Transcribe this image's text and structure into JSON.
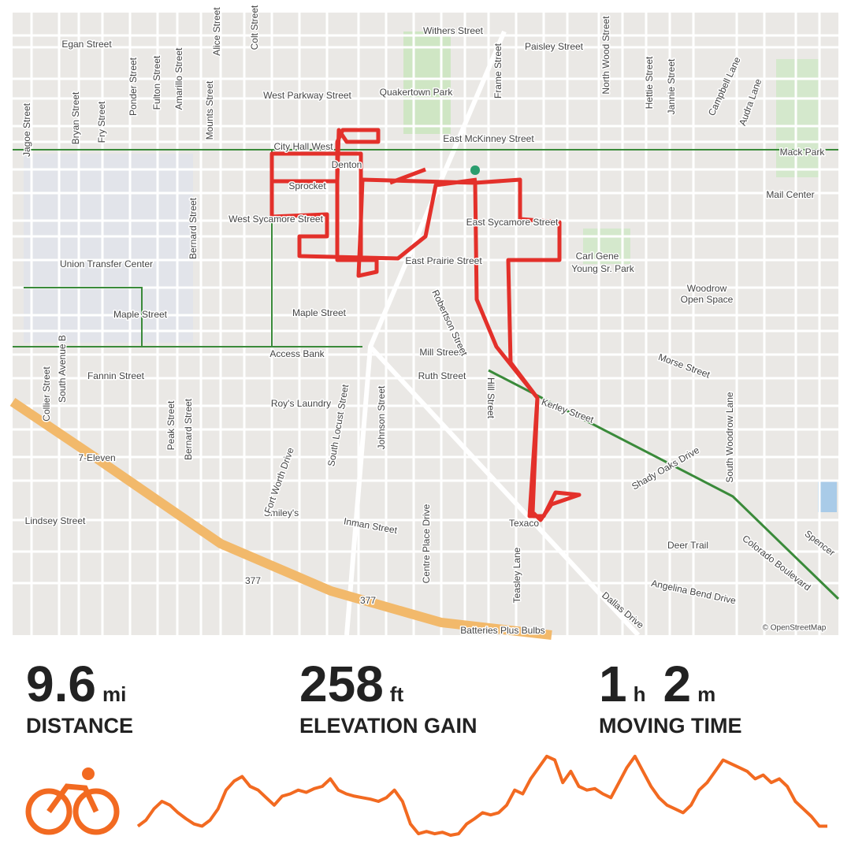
{
  "map": {
    "labels": [
      "Egan Street",
      "Withers Street",
      "Paisley Street",
      "West Parkway Street",
      "Quakertown Park",
      "East McKinney Street",
      "City Hall West",
      "Denton",
      "Sprocket",
      "West Sycamore Street",
      "East Sycamore Street",
      "East Prairie Street",
      "Union Transfer Center",
      "Carl Gene",
      "Young Sr. Park",
      "Woodrow",
      "Open Space",
      "Mack Park",
      "Mail Center",
      "Maple Street",
      "Maple Street",
      "Access Bank",
      "Mill Street",
      "Ruth Street",
      "Fannin Street",
      "Morse Street",
      "Roy's Laundry",
      "Kerley Street",
      "Shady Oaks Drive",
      "7-Eleven",
      "Lindsey Street",
      "Smiley's",
      "Inman Street",
      "Texaco",
      "Deer Trail",
      "Colorado Boulevard",
      "Angelina Bend Drive",
      "Dallas Drive",
      "Batteries Plus Bulbs",
      "© OpenStreetMap",
      "377",
      "377",
      "Bryan Street",
      "Fry Street",
      "Ponder Street",
      "Fulton Street",
      "Amarillo Street",
      "Mounts Street",
      "Alice Street",
      "Bernard Street",
      "Bernard Street",
      "Peak Street",
      "Fort Worth Drive",
      "South Locust Street",
      "Johnson Street",
      "Robertson Street",
      "Hill Street",
      "Frame Street",
      "North Wood Street",
      "Hettie Street",
      "Jannie Street",
      "Campbell Lane",
      "Audra Lane",
      "South Woodrow Lane",
      "Teasley Lane",
      "Centre Place Drive",
      "Collier Street",
      "South Avenue B",
      "Jagoe Street",
      "Colt Street",
      "Spencer"
    ]
  },
  "stats": [
    {
      "parts": [
        {
          "value": 9.6,
          "unit": "mi"
        }
      ],
      "label": "DISTANCE"
    },
    {
      "parts": [
        {
          "value": 258,
          "unit": "ft"
        }
      ],
      "label": "ELEVATION GAIN"
    },
    {
      "parts": [
        {
          "value": 1,
          "unit": "h"
        },
        {
          "value": 2,
          "unit": "m"
        }
      ],
      "label": "MOVING TIME"
    }
  ],
  "chart_data": {
    "type": "line",
    "color": "#f26a21",
    "ylim": [
      0,
      110
    ],
    "values": [
      12,
      20,
      35,
      45,
      40,
      30,
      22,
      15,
      12,
      20,
      35,
      60,
      72,
      78,
      65,
      60,
      50,
      40,
      52,
      55,
      60,
      57,
      62,
      65,
      75,
      60,
      55,
      52,
      50,
      48,
      45,
      50,
      60,
      45,
      15,
      2,
      5,
      2,
      4,
      0,
      2,
      15,
      22,
      30,
      27,
      30,
      40,
      60,
      55,
      75,
      90,
      105,
      100,
      70,
      85,
      65,
      60,
      62,
      55,
      50,
      70,
      90,
      105,
      85,
      65,
      50,
      40,
      35,
      30,
      40,
      60,
      70,
      85,
      100,
      95,
      90,
      85,
      75,
      80,
      70,
      75,
      65,
      45,
      35,
      25,
      12,
      12
    ]
  }
}
